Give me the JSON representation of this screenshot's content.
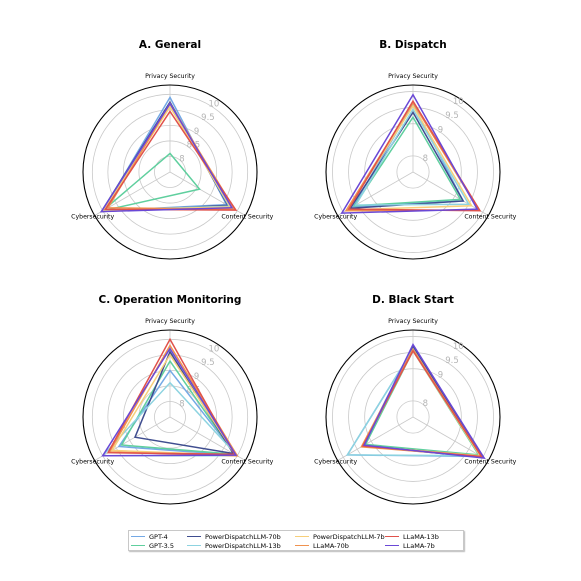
{
  "chart_data": [
    {
      "type": "radar",
      "title": "A. General",
      "axes": [
        "Privacy Security",
        "Content Security",
        "Cybersecurity"
      ],
      "r_ticks": [
        "8",
        "8.5",
        "9",
        "9.5",
        "10"
      ],
      "r_range": [
        7.5,
        10.3
      ],
      "series": [
        {
          "name": "GPT-4",
          "values": [
            9.9,
            9.6,
            10.0
          ]
        },
        {
          "name": "GPT-3.5",
          "values": [
            8.1,
            8.6,
            10.0
          ]
        },
        {
          "name": "PowerDispatchLLM-70b",
          "values": [
            9.75,
            9.65,
            10.05
          ]
        },
        {
          "name": "PowerDispatchLLM-13b",
          "values": [
            9.7,
            9.7,
            9.95
          ]
        },
        {
          "name": "PowerDispatchLLM-7b",
          "values": [
            9.6,
            9.75,
            9.95
          ]
        },
        {
          "name": "LLaMA-70b",
          "values": [
            9.7,
            9.9,
            9.8
          ]
        },
        {
          "name": "LLaMA-13b",
          "values": [
            9.45,
            9.95,
            9.9
          ]
        },
        {
          "name": "LLaMA-7b",
          "values": [
            9.7,
            9.8,
            10.05
          ]
        }
      ]
    },
    {
      "type": "radar",
      "title": "B. Dispatch",
      "axes": [
        "Privacy Security",
        "Content Security",
        "Cybersecurity"
      ],
      "r_ticks": [
        "8",
        "9",
        "9.5",
        "10"
      ],
      "r_range": [
        7.5,
        10.2
      ],
      "series": [
        {
          "name": "GPT-4",
          "values": [
            9.6,
            9.3,
            9.65
          ]
        },
        {
          "name": "GPT-3.5",
          "values": [
            9.2,
            9.2,
            9.6
          ]
        },
        {
          "name": "PowerDispatchLLM-70b",
          "values": [
            9.35,
            9.3,
            9.75
          ]
        },
        {
          "name": "PowerDispatchLLM-13b",
          "values": [
            9.45,
            9.5,
            9.55
          ]
        },
        {
          "name": "PowerDispatchLLM-7b",
          "values": [
            9.55,
            9.6,
            9.85
          ]
        },
        {
          "name": "LLaMA-70b",
          "values": [
            9.65,
            9.85,
            9.9
          ]
        },
        {
          "name": "LLaMA-13b",
          "values": [
            9.7,
            9.9,
            9.8
          ]
        },
        {
          "name": "LLaMA-7b",
          "values": [
            9.9,
            9.8,
            10.05
          ]
        }
      ]
    },
    {
      "type": "radar",
      "title": "C. Operation Monitoring",
      "axes": [
        "Privacy Security",
        "Content Security",
        "Cybersecurity"
      ],
      "r_ticks": [
        "8",
        "8.5",
        "9",
        "9.5",
        "10"
      ],
      "r_range": [
        7.5,
        10.3
      ],
      "series": [
        {
          "name": "GPT-4",
          "values": [
            9.0,
            9.95,
            9.4
          ]
        },
        {
          "name": "GPT-3.5",
          "values": [
            9.3,
            9.9,
            9.3
          ]
        },
        {
          "name": "PowerDispatchLLM-70b",
          "values": [
            9.6,
            9.85,
            8.8
          ]
        },
        {
          "name": "PowerDispatchLLM-13b",
          "values": [
            8.6,
            10.0,
            10.0
          ]
        },
        {
          "name": "PowerDispatchLLM-7b",
          "values": [
            9.5,
            9.95,
            9.65
          ]
        },
        {
          "name": "LLaMA-70b",
          "values": [
            9.8,
            10.0,
            9.75
          ]
        },
        {
          "name": "LLaMA-13b",
          "values": [
            10.0,
            9.9,
            9.8
          ]
        },
        {
          "name": "LLaMA-7b",
          "values": [
            9.7,
            9.95,
            10.0
          ]
        }
      ]
    },
    {
      "type": "radar",
      "title": "D. Black Start",
      "axes": [
        "Privacy Security",
        "Content Security",
        "Cybersecurity"
      ],
      "r_ticks": [
        "8",
        "9",
        "9.5",
        "10"
      ],
      "r_range": [
        7.5,
        10.2
      ],
      "series": [
        {
          "name": "GPT-4",
          "values": [
            9.6,
            9.95,
            9.85
          ]
        },
        {
          "name": "GPT-3.5",
          "values": [
            9.55,
            9.85,
            9.2
          ]
        },
        {
          "name": "PowerDispatchLLM-70b",
          "values": [
            9.7,
            10.0,
            9.3
          ]
        },
        {
          "name": "PowerDispatchLLM-13b",
          "values": [
            9.6,
            9.9,
            9.85
          ]
        },
        {
          "name": "PowerDispatchLLM-7b",
          "values": [
            9.55,
            9.9,
            9.3
          ]
        },
        {
          "name": "LLaMA-70b",
          "values": [
            9.6,
            9.95,
            9.35
          ]
        },
        {
          "name": "LLaMA-13b",
          "values": [
            9.55,
            9.95,
            9.3
          ]
        },
        {
          "name": "LLaMA-7b",
          "values": [
            9.75,
            10.05,
            9.25
          ]
        }
      ]
    }
  ],
  "legend": [
    {
      "name": "GPT-4",
      "color": "#74a9e5"
    },
    {
      "name": "GPT-3.5",
      "color": "#5fcf9e"
    },
    {
      "name": "PowerDispatchLLM-70b",
      "color": "#3f4d8f"
    },
    {
      "name": "PowerDispatchLLM-13b",
      "color": "#8dd3e0"
    },
    {
      "name": "PowerDispatchLLM-7b",
      "color": "#f7cf7a"
    },
    {
      "name": "LLaMA-70b",
      "color": "#f0924f"
    },
    {
      "name": "LLaMA-13b",
      "color": "#e0524b"
    },
    {
      "name": "LLaMA-7b",
      "color": "#6a48d6"
    }
  ]
}
